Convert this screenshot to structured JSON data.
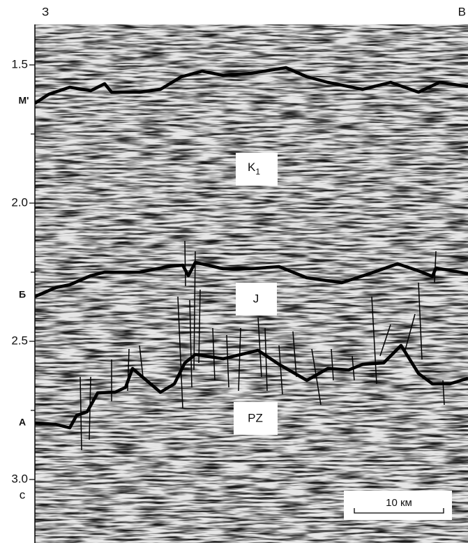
{
  "header": {
    "left": "З",
    "right": "В"
  },
  "y_axis": {
    "ticks": [
      "1.5",
      "2.0",
      "2.5",
      "3.0"
    ],
    "unit": "с"
  },
  "horizons": [
    "М'",
    "Б",
    "А"
  ],
  "units": [
    {
      "label": "K",
      "sub": "1"
    },
    {
      "label": "J"
    },
    {
      "label": "PZ"
    }
  ],
  "scale": "10 км"
}
